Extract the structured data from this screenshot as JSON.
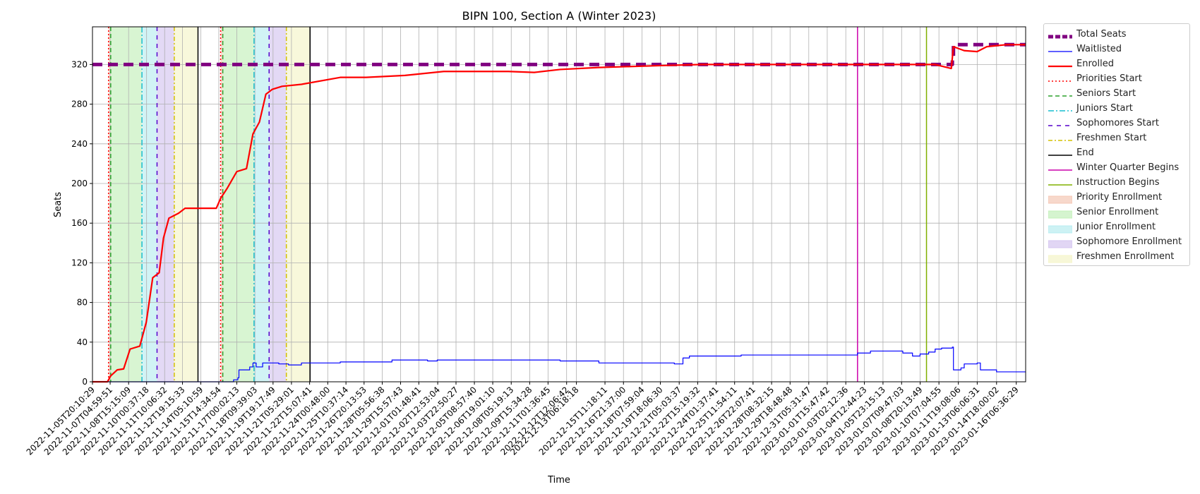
{
  "chart_data": {
    "type": "line",
    "title": "BIPN 100, Section A (Winter 2023)",
    "xlabel": "Time",
    "ylabel": "Seats",
    "ylim": [
      0,
      358
    ],
    "y_ticks": [
      0,
      40,
      80,
      120,
      160,
      200,
      240,
      280,
      320
    ],
    "x_range": [
      "2022-11-05T20:10:29",
      "2023-01-17T00:00:00"
    ],
    "x_ticks": [
      "2022-11-05T20:10:29",
      "2022-11-07T04:59:51",
      "2022-11-08T15:15:09",
      "2022-11-10T00:37:18",
      "2022-11-11T10:06:32",
      "2022-11-12T19:15:33",
      "2022-11-14T05:10:59",
      "2022-11-15T14:34:54",
      "2022-11-17T00:02:13",
      "2022-11-18T09:39:03",
      "2022-11-19T19:17:49",
      "2022-11-21T05:29:01",
      "2022-11-22T15:07:41",
      "2022-11-24T00:48:00",
      "2022-11-25T10:37:14",
      "2022-11-26T20:13:53",
      "2022-11-28T05:56:38",
      "2022-11-29T15:57:43",
      "2022-12-01T01:48:41",
      "2022-12-02T12:53:04",
      "2022-12-03T22:50:27",
      "2022-12-05T08:57:40",
      "2022-12-06T19:01:10",
      "2022-12-08T05:19:13",
      "2022-12-09T15:34:28",
      "2022-12-11T01:36:45",
      "2022-12-12T12:06:42",
      "2022-12-13T06:18:18",
      "2022-12-15T11:18:11",
      "2022-12-16T21:37:00",
      "2022-12-18T07:59:04",
      "2022-12-19T18:06:30",
      "2022-12-21T05:03:37",
      "2022-12-22T15:19:32",
      "2022-12-24T01:37:41",
      "2022-12-25T11:54:11",
      "2022-12-26T22:07:41",
      "2022-12-28T08:32:15",
      "2022-12-29T18:48:48",
      "2022-12-31T05:31:47",
      "2023-01-01T15:47:42",
      "2023-01-03T02:12:36",
      "2023-01-04T12:44:23",
      "2023-01-05T23:15:13",
      "2023-01-07T09:47:03",
      "2023-01-08T20:13:49",
      "2023-01-10T07:04:55",
      "2023-01-11T19:08:06",
      "2023-01-13T06:06:31",
      "2023-01-14T18:00:02",
      "2023-01-16T06:36:29"
    ],
    "grid": true,
    "legend_position": "outside-right",
    "series": [
      {
        "name": "Total Seats",
        "kind": "line",
        "color": "#800080",
        "style": "dashed",
        "points": [
          [
            "2022-11-05T20:10:29",
            320
          ],
          [
            "2023-01-11T07:00:00",
            320
          ],
          [
            "2023-01-11T08:00:00",
            328
          ],
          [
            "2023-01-11T10:00:00",
            340
          ],
          [
            "2023-01-17T00:00:00",
            340
          ]
        ]
      },
      {
        "name": "Waitlisted",
        "kind": "line",
        "color": "#0000ff",
        "style": "solid",
        "points": [
          [
            "2022-11-05T20:10:29",
            0
          ],
          [
            "2022-11-16T08:00:00",
            0
          ],
          [
            "2022-11-16T18:00:00",
            2
          ],
          [
            "2022-11-17T02:00:00",
            4
          ],
          [
            "2022-11-17T04:00:00",
            12
          ],
          [
            "2022-11-18T00:00:00",
            15
          ],
          [
            "2022-11-18T06:00:00",
            19
          ],
          [
            "2022-11-18T12:00:00",
            15
          ],
          [
            "2022-11-19T00:00:00",
            19
          ],
          [
            "2022-11-20T06:00:00",
            18
          ],
          [
            "2022-11-21T00:00:00",
            17
          ],
          [
            "2022-11-22T00:00:00",
            19
          ],
          [
            "2022-11-25T00:00:00",
            20
          ],
          [
            "2022-11-29T00:00:00",
            22
          ],
          [
            "2022-12-01T18:00:00",
            21
          ],
          [
            "2022-12-02T12:00:00",
            22
          ],
          [
            "2022-12-12T00:00:00",
            21
          ],
          [
            "2022-12-15T00:00:00",
            19
          ],
          [
            "2022-12-20T20:00:00",
            18
          ],
          [
            "2022-12-21T12:00:00",
            24
          ],
          [
            "2022-12-22T00:00:00",
            26
          ],
          [
            "2022-12-26T00:00:00",
            27
          ],
          [
            "2023-01-02T00:00:00",
            27
          ],
          [
            "2023-01-04T00:00:00",
            29
          ],
          [
            "2023-01-05T00:00:00",
            31
          ],
          [
            "2023-01-07T12:00:00",
            29
          ],
          [
            "2023-01-08T06:00:00",
            26
          ],
          [
            "2023-01-08T20:00:00",
            28
          ],
          [
            "2023-01-09T12:00:00",
            30
          ],
          [
            "2023-01-10T00:00:00",
            33
          ],
          [
            "2023-01-10T12:00:00",
            34
          ],
          [
            "2023-01-11T08:00:00",
            35
          ],
          [
            "2023-01-11T10:00:00",
            12
          ],
          [
            "2023-01-12T00:00:00",
            14
          ],
          [
            "2023-01-12T06:00:00",
            18
          ],
          [
            "2023-01-13T06:00:00",
            19
          ],
          [
            "2023-01-13T12:00:00",
            12
          ],
          [
            "2023-01-14T18:00:00",
            10
          ],
          [
            "2023-01-17T00:00:00",
            10
          ]
        ]
      },
      {
        "name": "Enrolled",
        "kind": "line",
        "color": "#ff0000",
        "style": "solid",
        "points": [
          [
            "2022-11-05T20:10:29",
            0
          ],
          [
            "2022-11-07T00:00:00",
            0
          ],
          [
            "2022-11-07T06:00:00",
            6
          ],
          [
            "2022-11-07T18:00:00",
            12
          ],
          [
            "2022-11-08T06:00:00",
            13
          ],
          [
            "2022-11-08T18:00:00",
            33
          ],
          [
            "2022-11-09T12:00:00",
            36
          ],
          [
            "2022-11-10T00:00:00",
            60
          ],
          [
            "2022-11-10T12:00:00",
            105
          ],
          [
            "2022-11-11T00:00:00",
            110
          ],
          [
            "2022-11-11T08:00:00",
            145
          ],
          [
            "2022-11-11T18:00:00",
            165
          ],
          [
            "2022-11-12T12:00:00",
            170
          ],
          [
            "2022-11-13T00:00:00",
            175
          ],
          [
            "2022-11-15T10:00:00",
            175
          ],
          [
            "2022-11-15T18:00:00",
            185
          ],
          [
            "2022-11-16T06:00:00",
            195
          ],
          [
            "2022-11-17T00:00:00",
            212
          ],
          [
            "2022-11-17T18:00:00",
            215
          ],
          [
            "2022-11-18T06:00:00",
            250
          ],
          [
            "2022-11-18T18:00:00",
            262
          ],
          [
            "2022-11-19T06:00:00",
            290
          ],
          [
            "2022-11-19T18:00:00",
            295
          ],
          [
            "2022-11-20T12:00:00",
            298
          ],
          [
            "2022-11-22T00:00:00",
            300
          ],
          [
            "2022-11-25T00:00:00",
            307
          ],
          [
            "2022-11-27T00:00:00",
            307
          ],
          [
            "2022-11-30T00:00:00",
            309
          ],
          [
            "2022-12-03T00:00:00",
            313
          ],
          [
            "2022-12-08T00:00:00",
            313
          ],
          [
            "2022-12-10T00:00:00",
            312
          ],
          [
            "2022-12-12T00:00:00",
            315
          ],
          [
            "2022-12-15T00:00:00",
            317
          ],
          [
            "2022-12-20T00:00:00",
            319
          ],
          [
            "2022-12-23T00:00:00",
            320
          ],
          [
            "2023-01-10T00:00:00",
            320
          ],
          [
            "2023-01-11T06:00:00",
            316
          ],
          [
            "2023-01-11T10:00:00",
            338
          ],
          [
            "2023-01-12T06:00:00",
            334
          ],
          [
            "2023-01-13T06:00:00",
            333
          ],
          [
            "2023-01-14T00:00:00",
            338
          ],
          [
            "2023-01-15T12:00:00",
            340
          ],
          [
            "2023-01-17T00:00:00",
            340
          ]
        ]
      }
    ],
    "bands": [
      {
        "name": "Priority Enrollment",
        "color": "#f4c7b5",
        "from": "2022-11-07T02:00:00",
        "to": "2022-11-07T06:00:00"
      },
      {
        "name": "Senior Enrollment",
        "color": "#c3f0ba",
        "from": "2022-11-07T06:00:00",
        "to": "2022-11-09T16:00:00"
      },
      {
        "name": "Junior Enrollment",
        "color": "#b8ecf0",
        "from": "2022-11-09T16:00:00",
        "to": "2022-11-10T20:00:00"
      },
      {
        "name": "Sophomore Enrollment",
        "color": "#d4c4f0",
        "from": "2022-11-10T20:00:00",
        "to": "2022-11-12T04:00:00"
      },
      {
        "name": "Freshmen Enrollment",
        "color": "#f4f4c8",
        "from": "2022-11-12T04:00:00",
        "to": "2022-11-14T00:00:00"
      },
      {
        "name": "Priority Enrollment",
        "color": "#f4c7b5",
        "from": "2022-11-15T18:00:00",
        "to": "2022-11-15T22:00:00"
      },
      {
        "name": "Senior Enrollment",
        "color": "#c3f0ba",
        "from": "2022-11-15T22:00:00",
        "to": "2022-11-18T08:00:00"
      },
      {
        "name": "Junior Enrollment",
        "color": "#b8ecf0",
        "from": "2022-11-18T08:00:00",
        "to": "2022-11-19T12:00:00"
      },
      {
        "name": "Sophomore Enrollment",
        "color": "#d4c4f0",
        "from": "2022-11-19T12:00:00",
        "to": "2022-11-20T20:00:00"
      },
      {
        "name": "Freshmen Enrollment",
        "color": "#f4f4c8",
        "from": "2022-11-20T20:00:00",
        "to": "2022-11-22T16:00:00"
      }
    ],
    "vlines": [
      {
        "name": "Priorities Start",
        "color": "#ff0000",
        "dash": "2,3",
        "at": "2022-11-07T02:00:00"
      },
      {
        "name": "Seniors Start",
        "color": "#2ca02c",
        "dash": "6,4",
        "at": "2022-11-07T06:00:00"
      },
      {
        "name": "Juniors Start",
        "color": "#17becf",
        "dash": "8,3,2,3",
        "at": "2022-11-09T16:00:00"
      },
      {
        "name": "Sophomores Start",
        "color": "#5500cc",
        "dash": "6,6",
        "at": "2022-11-10T20:00:00"
      },
      {
        "name": "Freshmen Start",
        "color": "#d4c000",
        "dash": "6,3,2,3",
        "at": "2022-11-12T04:00:00"
      },
      {
        "name": "End",
        "color": "#000000",
        "dash": "",
        "at": "2022-11-14T00:00:00"
      },
      {
        "name": "Priorities Start",
        "color": "#ff0000",
        "dash": "2,3",
        "at": "2022-11-15T18:00:00"
      },
      {
        "name": "Seniors Start",
        "color": "#2ca02c",
        "dash": "6,4",
        "at": "2022-11-15T22:00:00"
      },
      {
        "name": "Juniors Start",
        "color": "#17becf",
        "dash": "8,3,2,3",
        "at": "2022-11-18T08:00:00"
      },
      {
        "name": "Sophomores Start",
        "color": "#5500cc",
        "dash": "6,6",
        "at": "2022-11-19T12:00:00"
      },
      {
        "name": "Freshmen Start",
        "color": "#d4c000",
        "dash": "6,3,2,3",
        "at": "2022-11-20T20:00:00"
      },
      {
        "name": "End",
        "color": "#000000",
        "dash": "",
        "at": "2022-11-22T16:00:00"
      },
      {
        "name": "Winter Quarter Begins",
        "color": "#cc00aa",
        "dash": "",
        "at": "2023-01-04T00:00:00"
      },
      {
        "name": "Instruction Begins",
        "color": "#80b000",
        "dash": "",
        "at": "2023-01-09T08:00:00"
      }
    ]
  },
  "legend": {
    "items": [
      {
        "label": "Total Seats",
        "kind": "line",
        "color": "#800080",
        "dash": "7,3",
        "width": 5
      },
      {
        "label": "Waitlisted",
        "kind": "line",
        "color": "#0000ff",
        "dash": "",
        "width": 1.2
      },
      {
        "label": "Enrolled",
        "kind": "line",
        "color": "#ff0000",
        "dash": "",
        "width": 2.2
      },
      {
        "label": "Priorities Start",
        "kind": "line",
        "color": "#ff0000",
        "dash": "2,3",
        "width": 1.4
      },
      {
        "label": "Seniors Start",
        "kind": "line",
        "color": "#2ca02c",
        "dash": "6,4",
        "width": 1.4
      },
      {
        "label": "Juniors Start",
        "kind": "line",
        "color": "#17becf",
        "dash": "8,3,2,3",
        "width": 1.4
      },
      {
        "label": "Sophomores Start",
        "kind": "line",
        "color": "#5500cc",
        "dash": "6,6",
        "width": 1.4
      },
      {
        "label": "Freshmen Start",
        "kind": "line",
        "color": "#d4c000",
        "dash": "6,3,2,3",
        "width": 1.4
      },
      {
        "label": "End",
        "kind": "line",
        "color": "#000000",
        "dash": "",
        "width": 1.6
      },
      {
        "label": "Winter Quarter Begins",
        "kind": "line",
        "color": "#cc00aa",
        "dash": "",
        "width": 1.6
      },
      {
        "label": "Instruction Begins",
        "kind": "line",
        "color": "#80b000",
        "dash": "",
        "width": 1.6
      },
      {
        "label": "Priority Enrollment",
        "kind": "patch",
        "color": "#f4c7b5"
      },
      {
        "label": "Senior Enrollment",
        "kind": "patch",
        "color": "#c3f0ba"
      },
      {
        "label": "Junior Enrollment",
        "kind": "patch",
        "color": "#b8ecf0"
      },
      {
        "label": "Sophomore Enrollment",
        "kind": "patch",
        "color": "#d4c4f0"
      },
      {
        "label": "Freshmen Enrollment",
        "kind": "patch",
        "color": "#f4f4c8"
      }
    ]
  }
}
